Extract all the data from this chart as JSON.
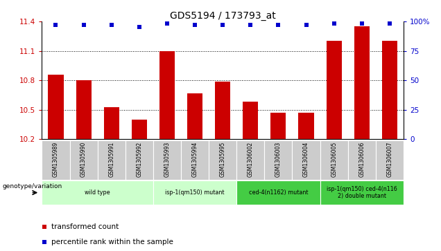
{
  "title": "GDS5194 / 173793_at",
  "samples": [
    "GSM1305989",
    "GSM1305990",
    "GSM1305991",
    "GSM1305992",
    "GSM1305993",
    "GSM1305994",
    "GSM1305995",
    "GSM1306002",
    "GSM1306003",
    "GSM1306004",
    "GSM1306005",
    "GSM1306006",
    "GSM1306007"
  ],
  "bar_values": [
    10.86,
    10.8,
    10.53,
    10.4,
    11.1,
    10.67,
    10.79,
    10.58,
    10.47,
    10.47,
    11.2,
    11.35,
    11.2
  ],
  "percentile_values": [
    97,
    97,
    97,
    95,
    98,
    97,
    97,
    97,
    97,
    97,
    98,
    98,
    98
  ],
  "bar_color": "#cc0000",
  "percentile_color": "#0000cc",
  "ylim_left": [
    10.2,
    11.4
  ],
  "ylim_right": [
    0,
    100
  ],
  "yticks_left": [
    10.2,
    10.5,
    10.8,
    11.1,
    11.4
  ],
  "yticks_right": [
    0,
    25,
    50,
    75,
    100
  ],
  "ytick_labels_right": [
    "0",
    "25",
    "50",
    "75",
    "100%"
  ],
  "groups": [
    {
      "label": "wild type",
      "start": 0,
      "end": 3,
      "color": "#ccffcc"
    },
    {
      "label": "isp-1(qm150) mutant",
      "start": 4,
      "end": 6,
      "color": "#ccffcc"
    },
    {
      "label": "ced-4(n1162) mutant",
      "start": 7,
      "end": 9,
      "color": "#44cc44"
    },
    {
      "label": "isp-1(qm150) ced-4(n116\n2) double mutant",
      "start": 10,
      "end": 12,
      "color": "#44cc44"
    }
  ],
  "genotype_label": "genotype/variation",
  "legend_bar_label": "transformed count",
  "legend_pct_label": "percentile rank within the sample",
  "bg_color": "#cccccc",
  "bar_width": 0.55
}
